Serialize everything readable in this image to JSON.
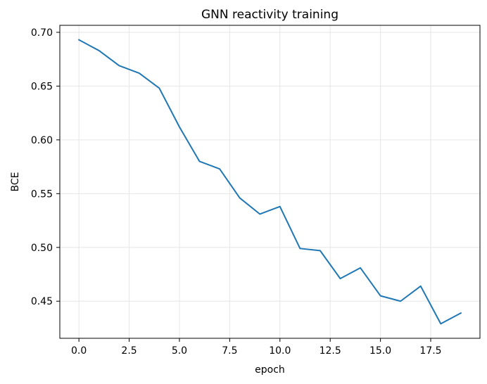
{
  "chart_data": {
    "type": "line",
    "title": "GNN reactivity training",
    "xlabel": "epoch",
    "ylabel": "BCE",
    "xlim": [
      -0.95,
      19.95
    ],
    "ylim": [
      0.4155,
      0.7065
    ],
    "xticks": [
      0.0,
      2.5,
      5.0,
      7.5,
      10.0,
      12.5,
      15.0,
      17.5
    ],
    "xtick_labels": [
      "0.0",
      "2.5",
      "5.0",
      "7.5",
      "10.0",
      "12.5",
      "15.0",
      "17.5"
    ],
    "yticks": [
      0.45,
      0.5,
      0.55,
      0.6,
      0.65,
      0.7
    ],
    "ytick_labels": [
      "0.45",
      "0.50",
      "0.55",
      "0.60",
      "0.65",
      "0.70"
    ],
    "grid": true,
    "series": [
      {
        "color": "#1f77b4",
        "x": [
          0,
          1,
          2,
          3,
          4,
          5,
          6,
          7,
          8,
          9,
          10,
          11,
          12,
          13,
          14,
          15,
          16,
          17,
          18,
          19
        ],
        "y": [
          0.693,
          0.683,
          0.669,
          0.662,
          0.648,
          0.612,
          0.58,
          0.573,
          0.546,
          0.531,
          0.538,
          0.499,
          0.497,
          0.471,
          0.481,
          0.455,
          0.45,
          0.464,
          0.429,
          0.439
        ]
      }
    ]
  }
}
